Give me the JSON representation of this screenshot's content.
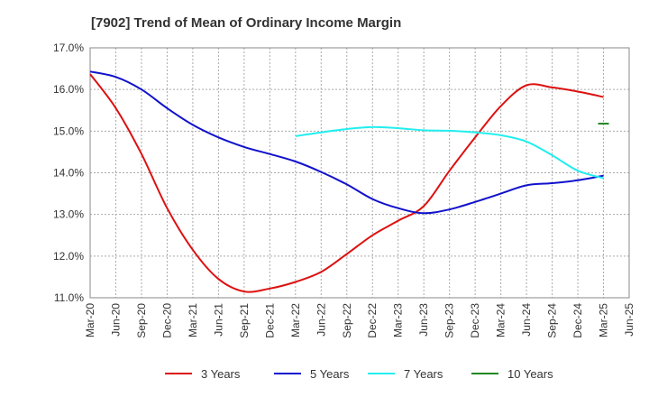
{
  "chart_data": {
    "type": "line",
    "title": "[7902]  Trend of Mean of Ordinary Income Margin",
    "xlabel": "",
    "ylabel": "",
    "x_ticks": [
      "Mar-20",
      "Jun-20",
      "Sep-20",
      "Dec-20",
      "Mar-21",
      "Jun-21",
      "Sep-21",
      "Dec-21",
      "Mar-22",
      "Jun-22",
      "Sep-22",
      "Dec-22",
      "Mar-23",
      "Jun-23",
      "Sep-23",
      "Dec-23",
      "Mar-24",
      "Jun-24",
      "Sep-24",
      "Dec-24",
      "Mar-25",
      "Jun-25"
    ],
    "y_ticks": [
      "11.0%",
      "12.0%",
      "13.0%",
      "14.0%",
      "15.0%",
      "16.0%",
      "17.0%"
    ],
    "ylim": [
      11.0,
      17.0
    ],
    "grid": true,
    "legend_position": "bottom",
    "series": [
      {
        "name": "3 Years",
        "color": "#dd1111",
        "points": [
          [
            "Mar-20",
            16.37
          ],
          [
            "Jun-20",
            15.55
          ],
          [
            "Sep-20",
            14.45
          ],
          [
            "Dec-20",
            13.15
          ],
          [
            "Mar-21",
            12.15
          ],
          [
            "Jun-21",
            11.45
          ],
          [
            "Sep-21",
            11.15
          ],
          [
            "Dec-21",
            11.22
          ],
          [
            "Mar-22",
            11.38
          ],
          [
            "Jun-22",
            11.62
          ],
          [
            "Sep-22",
            12.05
          ],
          [
            "Dec-22",
            12.5
          ],
          [
            "Mar-23",
            12.85
          ],
          [
            "Jun-23",
            13.2
          ],
          [
            "Sep-23",
            14.05
          ],
          [
            "Dec-23",
            14.85
          ],
          [
            "Mar-24",
            15.6
          ],
          [
            "Jun-24",
            16.1
          ],
          [
            "Sep-24",
            16.05
          ],
          [
            "Dec-24",
            15.95
          ],
          [
            "Mar-25",
            15.82
          ]
        ]
      },
      {
        "name": "5 Years",
        "color": "#1111cc",
        "points": [
          [
            "Mar-20",
            16.43
          ],
          [
            "Jun-20",
            16.3
          ],
          [
            "Sep-20",
            16.0
          ],
          [
            "Dec-20",
            15.55
          ],
          [
            "Mar-21",
            15.15
          ],
          [
            "Jun-21",
            14.85
          ],
          [
            "Sep-21",
            14.62
          ],
          [
            "Dec-21",
            14.45
          ],
          [
            "Mar-22",
            14.27
          ],
          [
            "Jun-22",
            14.02
          ],
          [
            "Sep-22",
            13.72
          ],
          [
            "Dec-22",
            13.37
          ],
          [
            "Mar-23",
            13.15
          ],
          [
            "Jun-23",
            13.03
          ],
          [
            "Sep-23",
            13.12
          ],
          [
            "Dec-23",
            13.3
          ],
          [
            "Mar-24",
            13.5
          ],
          [
            "Jun-24",
            13.7
          ],
          [
            "Sep-24",
            13.75
          ],
          [
            "Dec-24",
            13.82
          ],
          [
            "Mar-25",
            13.93
          ]
        ]
      },
      {
        "name": "7 Years",
        "color": "#22eeee",
        "points": [
          [
            "Mar-22",
            14.88
          ],
          [
            "Jun-22",
            14.97
          ],
          [
            "Sep-22",
            15.05
          ],
          [
            "Dec-22",
            15.1
          ],
          [
            "Mar-23",
            15.07
          ],
          [
            "Jun-23",
            15.02
          ],
          [
            "Sep-23",
            15.01
          ],
          [
            "Dec-23",
            14.97
          ],
          [
            "Mar-24",
            14.9
          ],
          [
            "Jun-24",
            14.75
          ],
          [
            "Sep-24",
            14.42
          ],
          [
            "Dec-24",
            14.05
          ],
          [
            "Mar-25",
            13.87
          ]
        ]
      },
      {
        "name": "10 Years",
        "color": "#228822",
        "points": [
          [
            "Mar-25",
            15.18
          ]
        ]
      }
    ]
  }
}
